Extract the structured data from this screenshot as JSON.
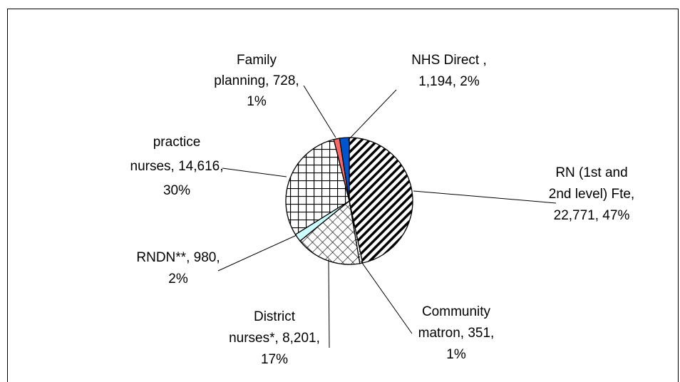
{
  "chart_data": {
    "type": "pie",
    "values": [
      22771,
      351,
      8201,
      980,
      14616,
      728,
      1194
    ],
    "labels": [
      [
        "RN (1st and",
        "2nd level) Fte,",
        "22,771, 47%"
      ],
      [
        "Community",
        "matron, 351,",
        "1%"
      ],
      [
        "District",
        "nurses*, 8,201,",
        "17%"
      ],
      [
        "RNDN**, 980,",
        "2%"
      ],
      [
        "practice",
        "nurses, 14,616,",
        "30%"
      ],
      [
        "Family",
        "planning, 728,",
        "1%"
      ],
      [
        "NHS Direct ,",
        "1,194, 2%"
      ]
    ],
    "colors": [
      "#000000",
      "#000000",
      "#000000",
      "#ccffff",
      "#000000",
      "#ff6666",
      "#0055cc"
    ],
    "patterns": [
      "diagonal",
      "dots",
      "crosshatch",
      "solid",
      "grid",
      "solid",
      "solid"
    ]
  }
}
